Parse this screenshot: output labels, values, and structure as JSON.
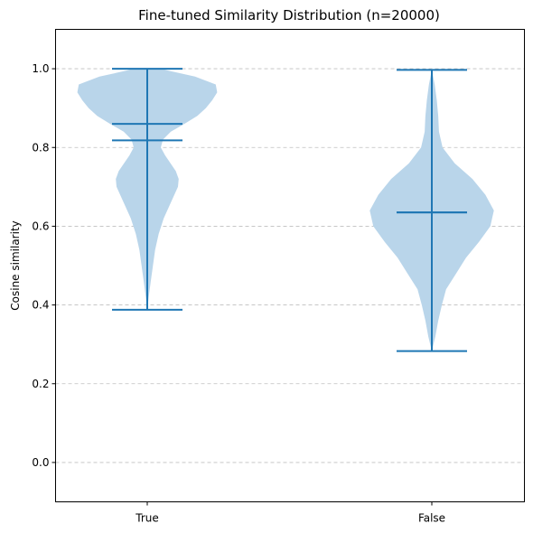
{
  "chart_data": {
    "type": "violin",
    "title": "Fine-tuned Similarity Distribution (n=20000)",
    "xlabel": "",
    "ylabel": "Cosine similarity",
    "categories": [
      "True",
      "False"
    ],
    "ylim": [
      -0.1,
      1.1
    ],
    "yticks": [
      0.0,
      0.2,
      0.4,
      0.6,
      0.8,
      1.0
    ],
    "ytick_labels": [
      "0.0",
      "0.2",
      "0.4",
      "0.6",
      "0.8",
      "1.0"
    ],
    "grid": "y-axis dashed",
    "body_color": "#b9d5ea",
    "line_color": "#1f77b4",
    "violins": [
      {
        "category": "True",
        "min": 0.388,
        "max": 1.0,
        "mean": 0.818,
        "median": 0.86,
        "density_profile": [
          [
            0.388,
            0.0
          ],
          [
            0.42,
            0.02
          ],
          [
            0.46,
            0.05
          ],
          [
            0.5,
            0.08
          ],
          [
            0.54,
            0.11
          ],
          [
            0.58,
            0.16
          ],
          [
            0.62,
            0.23
          ],
          [
            0.66,
            0.33
          ],
          [
            0.7,
            0.43
          ],
          [
            0.72,
            0.44
          ],
          [
            0.74,
            0.4
          ],
          [
            0.78,
            0.25
          ],
          [
            0.8,
            0.19
          ],
          [
            0.82,
            0.22
          ],
          [
            0.84,
            0.33
          ],
          [
            0.86,
            0.52
          ],
          [
            0.88,
            0.7
          ],
          [
            0.9,
            0.82
          ],
          [
            0.92,
            0.91
          ],
          [
            0.94,
            0.98
          ],
          [
            0.96,
            0.96
          ],
          [
            0.98,
            0.67
          ],
          [
            0.995,
            0.3
          ],
          [
            1.0,
            0.2
          ]
        ]
      },
      {
        "category": "False",
        "min": 0.283,
        "max": 0.997,
        "mean": 0.635,
        "median": 0.635,
        "density_profile": [
          [
            0.283,
            0.0
          ],
          [
            0.32,
            0.05
          ],
          [
            0.36,
            0.09
          ],
          [
            0.4,
            0.14
          ],
          [
            0.44,
            0.2
          ],
          [
            0.48,
            0.34
          ],
          [
            0.52,
            0.48
          ],
          [
            0.56,
            0.66
          ],
          [
            0.6,
            0.82
          ],
          [
            0.64,
            0.87
          ],
          [
            0.68,
            0.75
          ],
          [
            0.72,
            0.57
          ],
          [
            0.76,
            0.32
          ],
          [
            0.8,
            0.15
          ],
          [
            0.84,
            0.1
          ],
          [
            0.88,
            0.09
          ],
          [
            0.92,
            0.07
          ],
          [
            0.96,
            0.04
          ],
          [
            0.997,
            0.0
          ]
        ]
      }
    ]
  }
}
